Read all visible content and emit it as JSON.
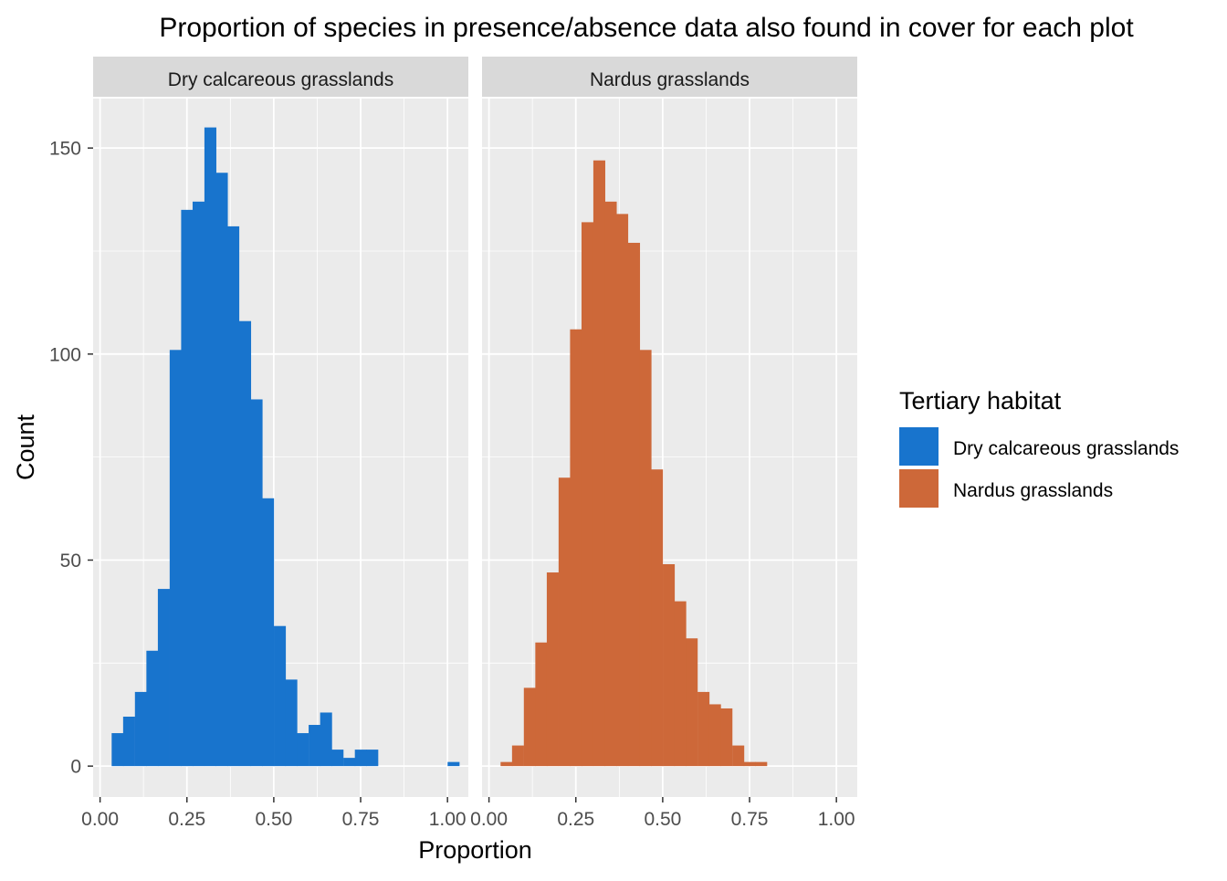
{
  "colors": {
    "panel_bg": "#EBEBEB",
    "grid_major": "#FFFFFF",
    "strip_bg": "#D9D9D9",
    "axis_text": "#4D4D4D",
    "tick": "#333333",
    "dry": "#1874CD",
    "nardus": "#CD6839"
  },
  "chart_data": {
    "type": "bar",
    "title": "Proportion of species in presence/absence data also found in cover for each plot",
    "xlabel": "Proportion",
    "ylabel": "Count",
    "xlim": [
      -0.02,
      1.06
    ],
    "ylim": [
      -7.5,
      162
    ],
    "x_ticks": [
      0,
      0.25,
      0.5,
      0.75,
      1
    ],
    "x_tick_labels": [
      "0.00",
      "0.25",
      "0.50",
      "0.75",
      "1.00"
    ],
    "y_ticks": [
      0,
      50,
      100,
      150
    ],
    "y_tick_labels": [
      "0",
      "50",
      "100",
      "150"
    ],
    "bin_width": 0.0333,
    "grid": true,
    "legend": {
      "title": "Tertiary habitat",
      "position": "right",
      "entries": [
        {
          "label": "Dry calcareous grasslands",
          "color": "#1874CD"
        },
        {
          "label": "Nardus grasslands",
          "color": "#CD6839"
        }
      ]
    },
    "panels": [
      {
        "strip": "Dry calcareous grasslands",
        "color": "#1874CD",
        "bin_centers": [
          0.05,
          0.083,
          0.117,
          0.15,
          0.183,
          0.217,
          0.25,
          0.283,
          0.317,
          0.35,
          0.383,
          0.417,
          0.45,
          0.483,
          0.517,
          0.55,
          0.583,
          0.617,
          0.65,
          0.683,
          0.717,
          0.75,
          0.783,
          1.017
        ],
        "counts": [
          8,
          12,
          18,
          28,
          43,
          101,
          135,
          137,
          155,
          144,
          131,
          108,
          89,
          65,
          34,
          21,
          8,
          10,
          13,
          4,
          2,
          4,
          4,
          1
        ]
      },
      {
        "strip": "Nardus grasslands",
        "color": "#CD6839",
        "bin_centers": [
          0.05,
          0.083,
          0.117,
          0.15,
          0.183,
          0.217,
          0.25,
          0.283,
          0.317,
          0.35,
          0.383,
          0.417,
          0.45,
          0.483,
          0.517,
          0.55,
          0.583,
          0.617,
          0.65,
          0.683,
          0.717,
          0.75,
          0.783,
          1.017
        ],
        "counts": [
          1,
          5,
          19,
          30,
          47,
          70,
          106,
          132,
          147,
          137,
          134,
          127,
          101,
          72,
          49,
          40,
          31,
          18,
          15,
          14,
          5,
          1,
          1,
          0
        ]
      }
    ]
  }
}
